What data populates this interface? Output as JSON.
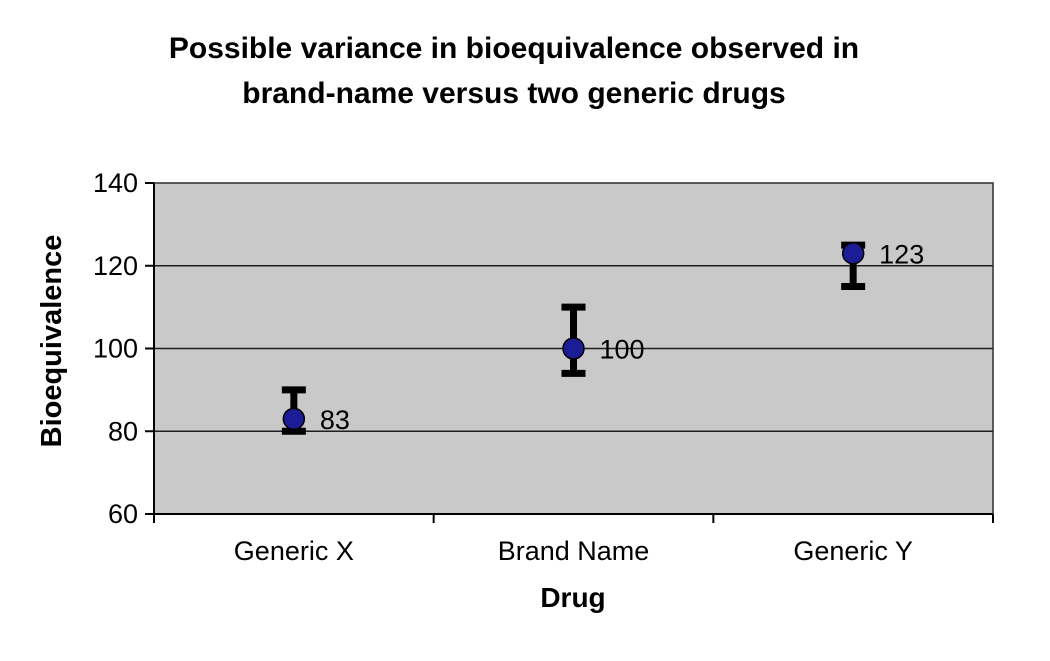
{
  "chart_data": {
    "type": "scatter",
    "title": "Possible variance in bioequivalence observed in brand-name versus two generic drugs",
    "title_lines": [
      "Possible variance in bioequivalence observed in",
      "brand-name versus two generic drugs"
    ],
    "xlabel": "Drug",
    "ylabel": "Bioequivalence",
    "categories": [
      "Generic X",
      "Brand Name",
      "Generic Y"
    ],
    "series": [
      {
        "name": "Bioequivalence",
        "marker": "circle",
        "points": [
          {
            "category": "Generic X",
            "value": 83,
            "label": "83",
            "error_low": 80,
            "error_high": 90
          },
          {
            "category": "Brand Name",
            "value": 100,
            "label": "100",
            "error_low": 94,
            "error_high": 110
          },
          {
            "category": "Generic Y",
            "value": 123,
            "label": "123",
            "error_low": 115,
            "error_high": 125
          }
        ]
      }
    ],
    "ylim": [
      60,
      140
    ],
    "yticks": [
      60,
      80,
      100,
      120,
      140
    ],
    "grid": true,
    "legend": false,
    "colors": {
      "marker_fill": "#1c1c96",
      "marker_stroke": "#000000",
      "error_bar": "#000000",
      "plot_background": "#c9c9c9",
      "plot_border": "#3a3a3a",
      "gridline": "#1f1f1f",
      "axis": "#000000",
      "text": "#000000",
      "page_background": "#ffffff"
    }
  }
}
